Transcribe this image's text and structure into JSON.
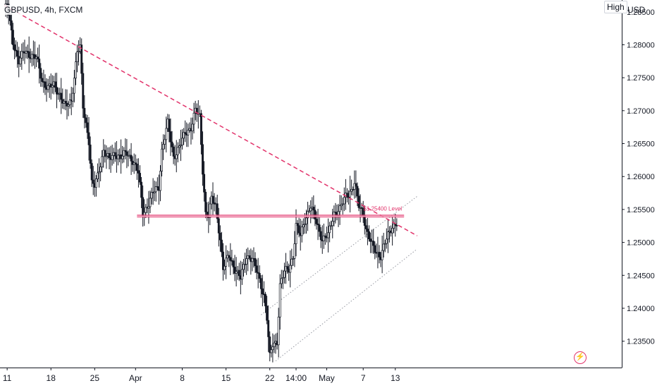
{
  "header": {
    "symbol_label": "GBPUSD, 4h, FXCM",
    "high_label": "High",
    "currency_label": "USD"
  },
  "icons": {
    "alert": "lightning-alert-icon"
  },
  "colors": {
    "candle": "#131722",
    "level_line": "#e2336b",
    "trendline": "#e2336b",
    "channel": "#9598a1",
    "axis_border": "#131722"
  },
  "chart_data": {
    "type": "candlestick",
    "symbol": "GBPUSD",
    "timeframe": "4h",
    "source": "FXCM",
    "y_axis": {
      "side": "right",
      "range": [
        1.231,
        1.2868
      ],
      "ticks": [
        "1.28500",
        "1.28000",
        "1.27500",
        "1.27000",
        "1.26500",
        "1.26000",
        "1.25500",
        "1.25000",
        "1.24500",
        "1.24000",
        "1.23500"
      ]
    },
    "x_axis": {
      "ticks": [
        {
          "label": "11",
          "bar": 2
        },
        {
          "label": "18",
          "bar": 32
        },
        {
          "label": "25",
          "bar": 62
        },
        {
          "label": "Apr",
          "bar": 90
        },
        {
          "label": "8",
          "bar": 122
        },
        {
          "label": "15",
          "bar": 152
        },
        {
          "label": "22",
          "bar": 182
        },
        {
          "label": "14:00",
          "bar": 200
        },
        {
          "label": "May",
          "bar": 221
        },
        {
          "label": "7",
          "bar": 246
        },
        {
          "label": "13",
          "bar": 268
        }
      ]
    },
    "close_path": [
      [
        0,
        1.2852
      ],
      [
        2,
        1.286
      ],
      [
        6,
        1.2805
      ],
      [
        10,
        1.2775
      ],
      [
        14,
        1.279
      ],
      [
        18,
        1.2785
      ],
      [
        22,
        1.278
      ],
      [
        26,
        1.2745
      ],
      [
        30,
        1.2735
      ],
      [
        34,
        1.2738
      ],
      [
        38,
        1.2725
      ],
      [
        42,
        1.2705
      ],
      [
        46,
        1.2715
      ],
      [
        50,
        1.279
      ],
      [
        52,
        1.2795
      ],
      [
        54,
        1.2705
      ],
      [
        58,
        1.2655
      ],
      [
        60,
        1.259
      ],
      [
        62,
        1.2585
      ],
      [
        64,
        1.26
      ],
      [
        68,
        1.264
      ],
      [
        72,
        1.2625
      ],
      [
        76,
        1.2635
      ],
      [
        80,
        1.263
      ],
      [
        84,
        1.2635
      ],
      [
        88,
        1.2625
      ],
      [
        92,
        1.2605
      ],
      [
        95,
        1.2545
      ],
      [
        98,
        1.2555
      ],
      [
        102,
        1.2575
      ],
      [
        106,
        1.2585
      ],
      [
        108,
        1.264
      ],
      [
        112,
        1.268
      ],
      [
        116,
        1.263
      ],
      [
        120,
        1.2645
      ],
      [
        124,
        1.2665
      ],
      [
        128,
        1.2675
      ],
      [
        131,
        1.27
      ],
      [
        134,
        1.269
      ],
      [
        136,
        1.261
      ],
      [
        138,
        1.2545
      ],
      [
        140,
        1.254
      ],
      [
        142,
        1.2565
      ],
      [
        145,
        1.2555
      ],
      [
        148,
        1.2505
      ],
      [
        150,
        1.246
      ],
      [
        154,
        1.248
      ],
      [
        158,
        1.246
      ],
      [
        162,
        1.2445
      ],
      [
        166,
        1.248
      ],
      [
        170,
        1.2475
      ],
      [
        174,
        1.245
      ],
      [
        178,
        1.242
      ],
      [
        180,
        1.2385
      ],
      [
        182,
        1.2325
      ],
      [
        184,
        1.2345
      ],
      [
        187,
        1.235
      ],
      [
        189,
        1.2435
      ],
      [
        192,
        1.2455
      ],
      [
        195,
        1.246
      ],
      [
        198,
        1.248
      ],
      [
        200,
        1.2525
      ],
      [
        203,
        1.251
      ],
      [
        206,
        1.2535
      ],
      [
        210,
        1.2555
      ],
      [
        214,
        1.253
      ],
      [
        218,
        1.2505
      ],
      [
        222,
        1.251
      ],
      [
        226,
        1.2545
      ],
      [
        230,
        1.255
      ],
      [
        234,
        1.257
      ],
      [
        238,
        1.258
      ],
      [
        240,
        1.259
      ],
      [
        243,
        1.2555
      ],
      [
        246,
        1.2545
      ],
      [
        248,
        1.252
      ],
      [
        252,
        1.2495
      ],
      [
        255,
        1.2485
      ],
      [
        258,
        1.248
      ],
      [
        262,
        1.2505
      ],
      [
        266,
        1.2525
      ],
      [
        269,
        1.253
      ]
    ],
    "horizontal_level": {
      "price": 1.254,
      "label": "$1.25400 Level",
      "from_bar": 91,
      "to_bar": 274
    },
    "resistance_trendline": {
      "from": [
        0,
        1.286
      ],
      "to": [
        283,
        1.251
      ],
      "style": "dashed"
    },
    "support_channel": [
      {
        "from": [
          176,
          1.239
        ],
        "to": [
          283,
          1.257
        ],
        "style": "dotted"
      },
      {
        "from": [
          186,
          1.232
        ],
        "to": [
          283,
          1.249
        ],
        "style": "dotted"
      }
    ]
  }
}
